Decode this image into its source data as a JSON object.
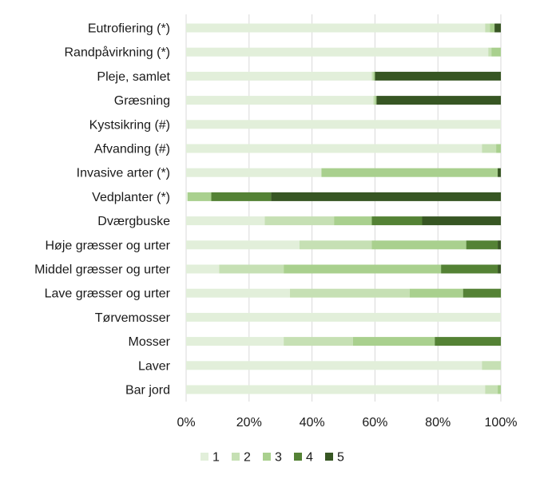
{
  "chart_data": {
    "type": "bar",
    "orientation": "horizontal",
    "stacked": true,
    "percent_stacked": true,
    "categories": [
      "Eutrofiering (*)",
      "Randpåvirkning (*)",
      "Pleje, samlet",
      "Græsning",
      "Kystsikring (#)",
      "Afvanding (#)",
      "Invasive arter (*)",
      "Vedplanter (*)",
      "Dværgbuske",
      "Høje græsser og urter",
      "Middel græsser og urter",
      "Lave græsser og urter",
      "Tørvemosser",
      "Mosser",
      "Laver",
      "Bar jord"
    ],
    "series": [
      {
        "name": "1",
        "color": "#e2efda",
        "values": [
          95,
          96,
          59,
          59.5,
          100,
          94,
          43,
          0.5,
          25,
          36,
          10.5,
          33,
          100,
          31,
          94,
          95
        ]
      },
      {
        "name": "2",
        "color": "#c6e0b4",
        "values": [
          1.5,
          1,
          0.5,
          0.5,
          0,
          4.5,
          0,
          0,
          22,
          23,
          20.5,
          38,
          0,
          22,
          6,
          4
        ]
      },
      {
        "name": "3",
        "color": "#a9d08e",
        "values": [
          1.5,
          3,
          0.5,
          0.5,
          0,
          1.5,
          56,
          7.5,
          12,
          30,
          50,
          17,
          0,
          26,
          0,
          1
        ]
      },
      {
        "name": "4",
        "color": "#548235",
        "values": [
          0,
          0,
          0,
          0,
          0,
          0,
          0,
          19,
          16,
          10,
          18,
          12,
          0,
          21,
          0,
          0
        ]
      },
      {
        "name": "5",
        "color": "#375623",
        "values": [
          2,
          0,
          40,
          39.5,
          0,
          0,
          1,
          73,
          25,
          1,
          1,
          0,
          0,
          0,
          0,
          0
        ]
      }
    ],
    "x_ticks": [
      "0%",
      "20%",
      "40%",
      "60%",
      "80%",
      "100%"
    ],
    "xlim": [
      0,
      100
    ],
    "grid": "vertical",
    "legend": "bottom"
  }
}
